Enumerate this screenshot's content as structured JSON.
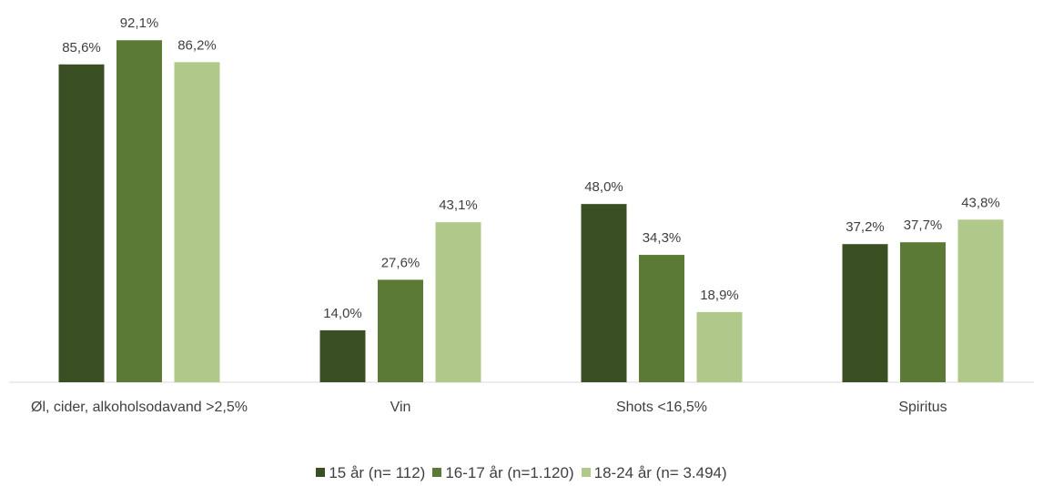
{
  "chart_data": {
    "type": "bar",
    "categories": [
      "Øl, cider, alkoholsodavand >2,5%",
      "Vin",
      "Shots <16,5%",
      "Spiritus"
    ],
    "series": [
      {
        "name": "15 år (n= 112)",
        "color": "#3b4f24",
        "values": [
          85.6,
          14.0,
          48.0,
          37.2
        ],
        "value_labels": [
          "85,6%",
          "14,0%",
          "48,0%",
          "37,2%"
        ]
      },
      {
        "name": "16-17 år (n=1.120)",
        "color": "#5a7a35",
        "values": [
          92.1,
          27.6,
          34.3,
          37.7
        ],
        "value_labels": [
          "92,1%",
          "27,6%",
          "34,3%",
          "37,7%"
        ]
      },
      {
        "name": "18-24 år (n= 3.494)",
        "color": "#b0c98a",
        "values": [
          86.2,
          43.1,
          18.9,
          43.8
        ],
        "value_labels": [
          "86,2%",
          "43,1%",
          "18,9%",
          "43,8%"
        ]
      }
    ],
    "ylim": [
      0,
      100
    ],
    "legend": "bottom"
  }
}
